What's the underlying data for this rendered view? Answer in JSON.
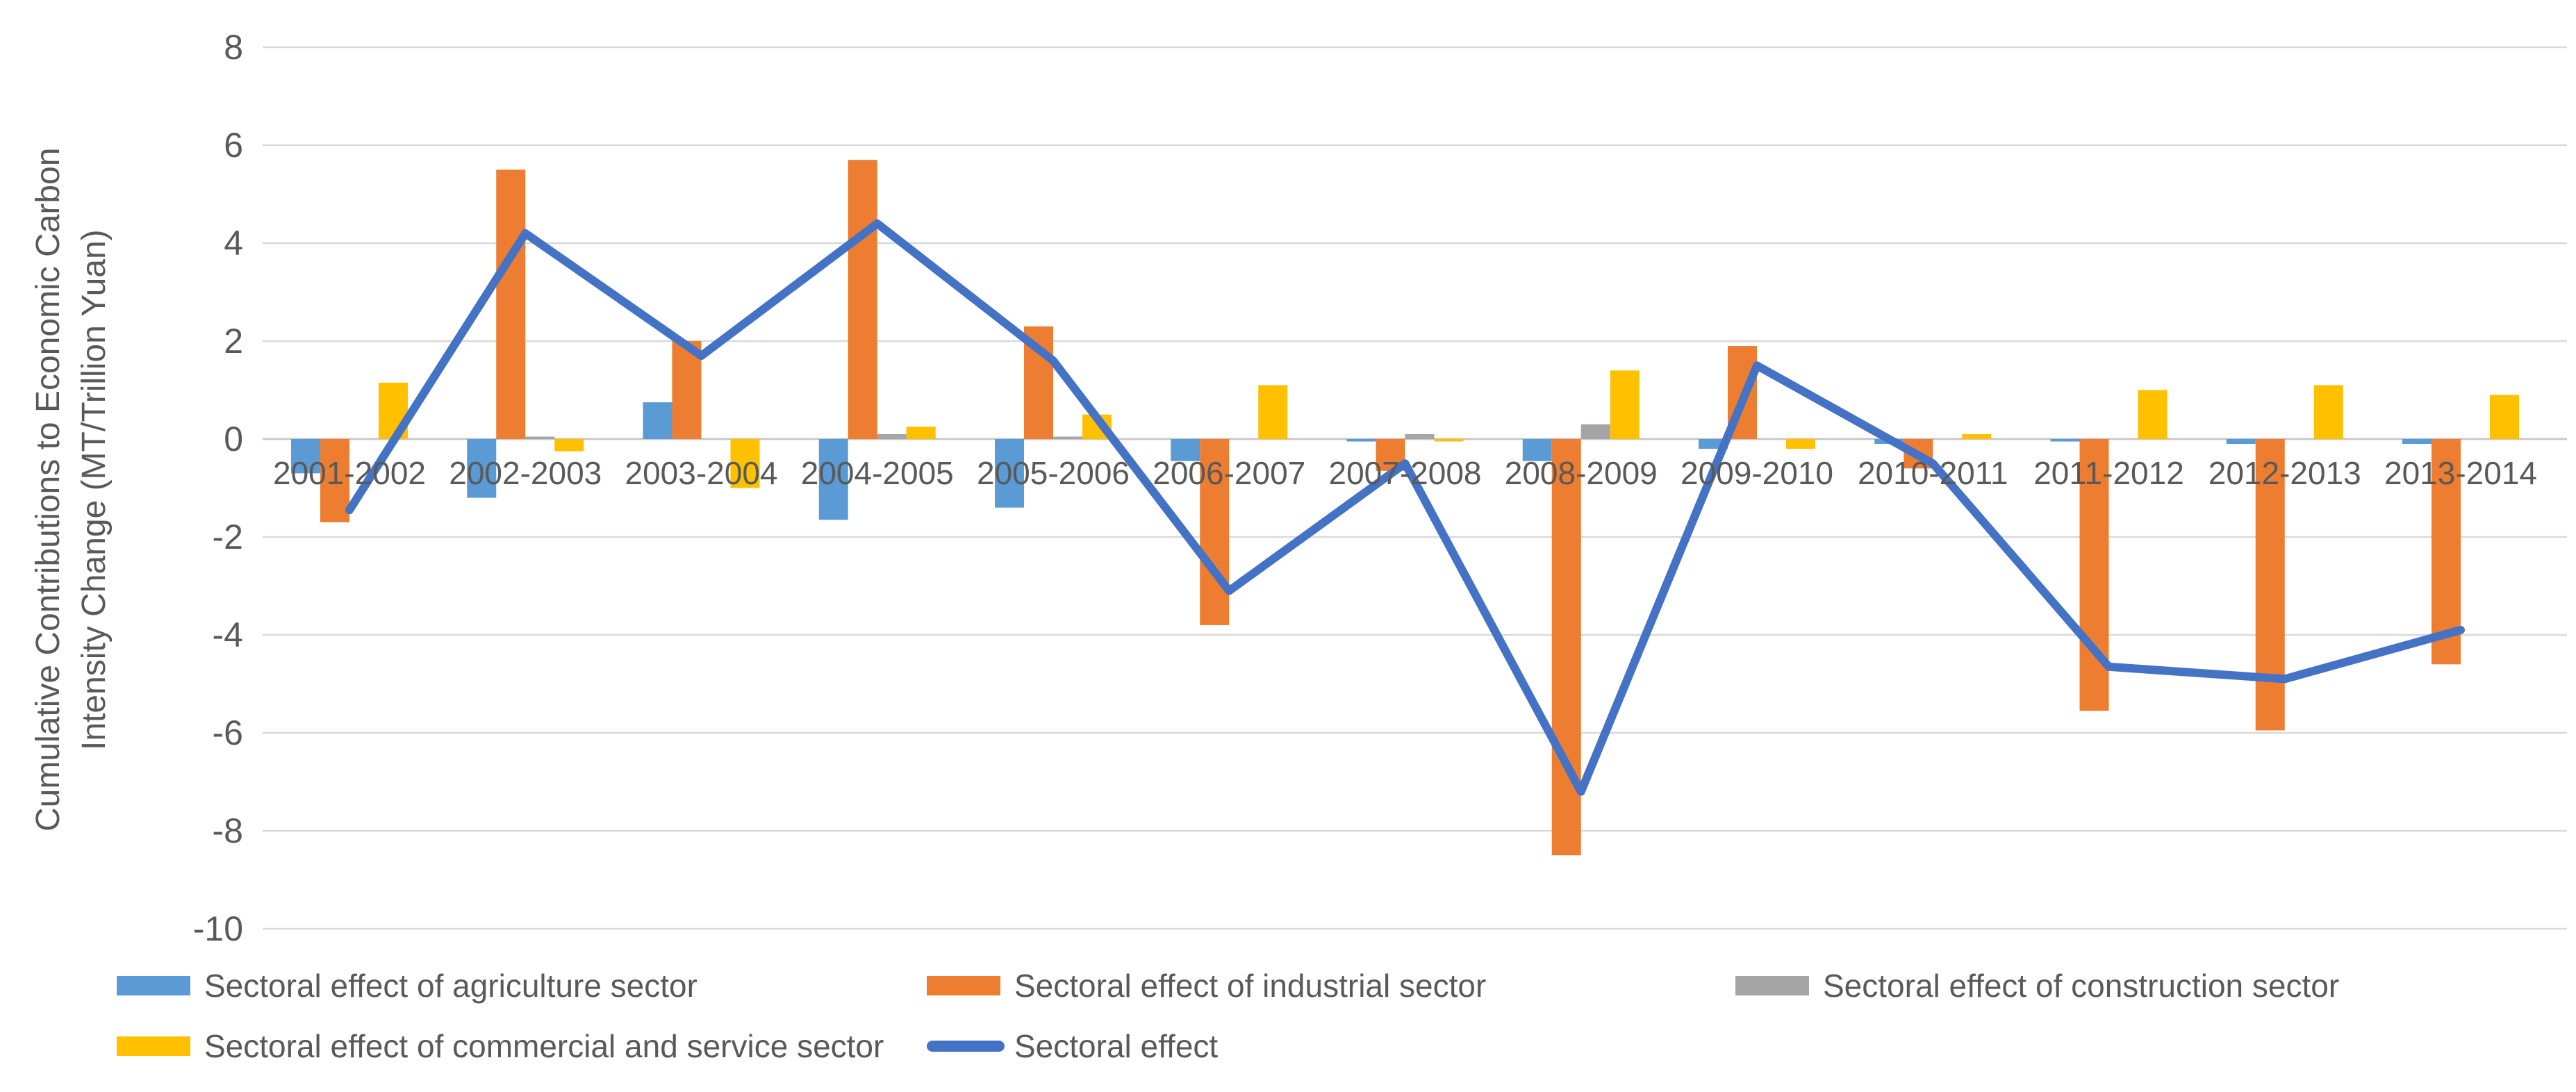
{
  "chart_data": {
    "type": "bar-line-combo",
    "ylabel": "Cumulative Contributions to Economic Carbon Intensity Change (MT/Trillion Yuan)",
    "ylabel_lines": [
      "Cumulative Contributions to Economic Carbon",
      "Intensity Change (MT/Trillion Yuan)"
    ],
    "categories": [
      "2001-2002",
      "2002-2003",
      "2003-2004",
      "2004-2005",
      "2005-2006",
      "2006-2007",
      "2007-2008",
      "2008-2009",
      "2009-2010",
      "2010-2011",
      "2011-2012",
      "2012-2013",
      "2013-2014"
    ],
    "yticks": [
      8,
      6,
      4,
      2,
      0,
      -2,
      -4,
      -6,
      -8,
      -10
    ],
    "ylim": [
      -10,
      8
    ],
    "grid": true,
    "legend_position": "bottom",
    "series": [
      {
        "name": "Sectoral effect of agriculture sector",
        "kind": "bar",
        "color": "#5B9BD5",
        "values": [
          -0.7,
          -1.2,
          0.75,
          -1.65,
          -1.4,
          -0.45,
          -0.05,
          -0.45,
          -0.2,
          -0.1,
          -0.05,
          -0.1,
          -0.1
        ]
      },
      {
        "name": "Sectoral effect of industrial sector",
        "kind": "bar",
        "color": "#ED7D31",
        "values": [
          -1.7,
          5.5,
          2.0,
          5.7,
          2.3,
          -3.8,
          -0.65,
          -8.5,
          1.9,
          -0.6,
          -5.55,
          -5.95,
          -4.6
        ]
      },
      {
        "name": "Sectoral effect of construction sector",
        "kind": "bar",
        "color": "#A5A5A5",
        "values": [
          0,
          0.05,
          0,
          0.1,
          0.05,
          0,
          0.1,
          0.3,
          0,
          0,
          0,
          0,
          0
        ]
      },
      {
        "name": "Sectoral effect of commercial and service sector",
        "kind": "bar",
        "color": "#FFC000",
        "values": [
          1.15,
          -0.25,
          -1.0,
          0.25,
          0.5,
          1.1,
          -0.05,
          1.4,
          -0.2,
          0.1,
          1.0,
          1.1,
          0.9
        ]
      },
      {
        "name": "Sectoral effect",
        "kind": "line",
        "color": "#4472C4",
        "values": [
          -1.45,
          4.2,
          1.7,
          4.4,
          1.6,
          -3.1,
          -0.5,
          -7.2,
          1.5,
          -0.5,
          -4.65,
          -4.9,
          -3.9
        ]
      }
    ],
    "colors": {
      "agriculture": "#5B9BD5",
      "industrial": "#ED7D31",
      "construction": "#A5A5A5",
      "commercial": "#FFC000",
      "line": "#4472C4",
      "gridline": "#D9D9D9",
      "zeroline": "#C8C8C8",
      "text": "#595959"
    }
  }
}
